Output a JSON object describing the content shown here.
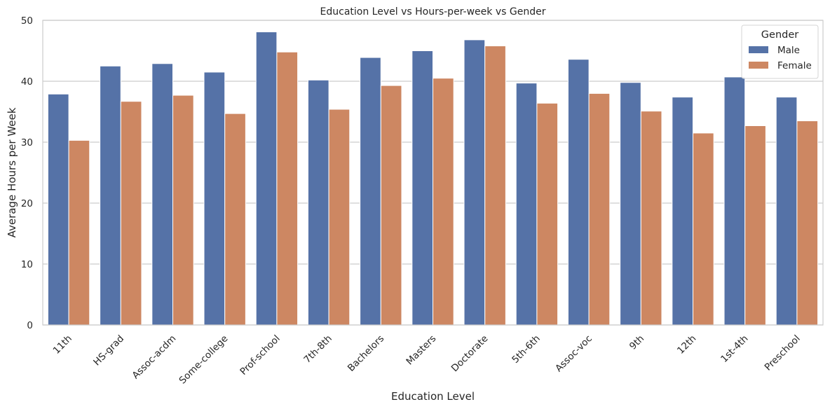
{
  "chart_data": {
    "type": "bar",
    "title": "Education Level vs Hours-per-week vs Gender",
    "xlabel": "Education Level",
    "ylabel": "Average Hours per Week",
    "ylim": [
      0,
      50
    ],
    "yticks": [
      0,
      10,
      20,
      30,
      40,
      50
    ],
    "grid": true,
    "legend": {
      "title": "Gender",
      "placement": "top-right"
    },
    "categories": [
      "11th",
      "HS-grad",
      "Assoc-acdm",
      "Some-college",
      "Prof-school",
      "7th-8th",
      "Bachelors",
      "Masters",
      "Doctorate",
      "5th-6th",
      "Assoc-voc",
      "9th",
      "12th",
      "1st-4th",
      "Preschool"
    ],
    "series": [
      {
        "name": "Male",
        "color": "#5572a7",
        "values": [
          37.9,
          42.5,
          42.9,
          41.5,
          48.1,
          40.2,
          43.9,
          45.0,
          46.8,
          39.7,
          43.6,
          39.8,
          37.4,
          40.7,
          37.4
        ]
      },
      {
        "name": "Female",
        "color": "#cd8762",
        "values": [
          30.3,
          36.7,
          37.7,
          34.7,
          44.8,
          35.4,
          39.3,
          40.5,
          45.8,
          36.4,
          38.0,
          35.1,
          31.5,
          32.7,
          33.5
        ]
      }
    ]
  }
}
